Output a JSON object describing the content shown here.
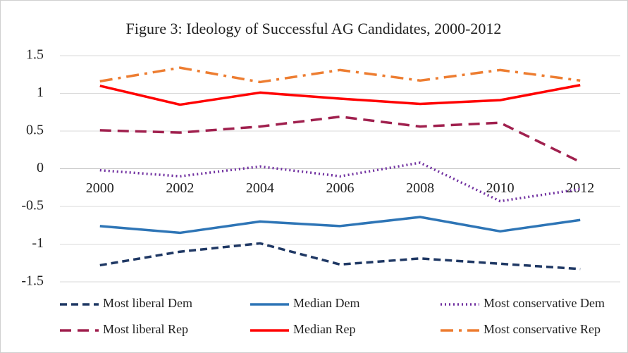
{
  "chart_data": {
    "type": "line",
    "title": "Figure 3: Ideology of Successful AG Candidates, 2000-2012",
    "categories": [
      "2000",
      "2002",
      "2004",
      "2006",
      "2008",
      "2010",
      "2012"
    ],
    "ylim": [
      -1.5,
      1.5
    ],
    "yticks": [
      1.5,
      1,
      0.5,
      0,
      -0.5,
      -1,
      -1.5
    ],
    "grid": true,
    "legend": "bottom",
    "series": [
      {
        "name": "Most liberal Dem",
        "color": "#1f3864",
        "style": "dashed",
        "values": [
          -1.28,
          -1.1,
          -0.99,
          -1.27,
          -1.19,
          -1.26,
          -1.33
        ]
      },
      {
        "name": "Median Dem",
        "color": "#2e75b6",
        "style": "solid",
        "values": [
          -0.76,
          -0.85,
          -0.7,
          -0.76,
          -0.64,
          -0.83,
          -0.68
        ]
      },
      {
        "name": "Most conservative Dem",
        "color": "#7030a0",
        "style": "dotted",
        "values": [
          -0.02,
          -0.1,
          0.03,
          -0.1,
          0.08,
          -0.43,
          -0.27
        ]
      },
      {
        "name": "Most liberal Rep",
        "color": "#a0204e",
        "style": "longdash",
        "values": [
          0.51,
          0.48,
          0.56,
          0.69,
          0.56,
          0.61,
          0.09
        ]
      },
      {
        "name": "Median Rep",
        "color": "#ff0000",
        "style": "solid",
        "values": [
          1.1,
          0.85,
          1.01,
          0.93,
          0.86,
          0.91,
          1.11
        ]
      },
      {
        "name": "Most conservative Rep",
        "color": "#ed7d31",
        "style": "dashdot",
        "values": [
          1.16,
          1.34,
          1.15,
          1.31,
          1.17,
          1.31,
          1.17
        ]
      }
    ]
  }
}
